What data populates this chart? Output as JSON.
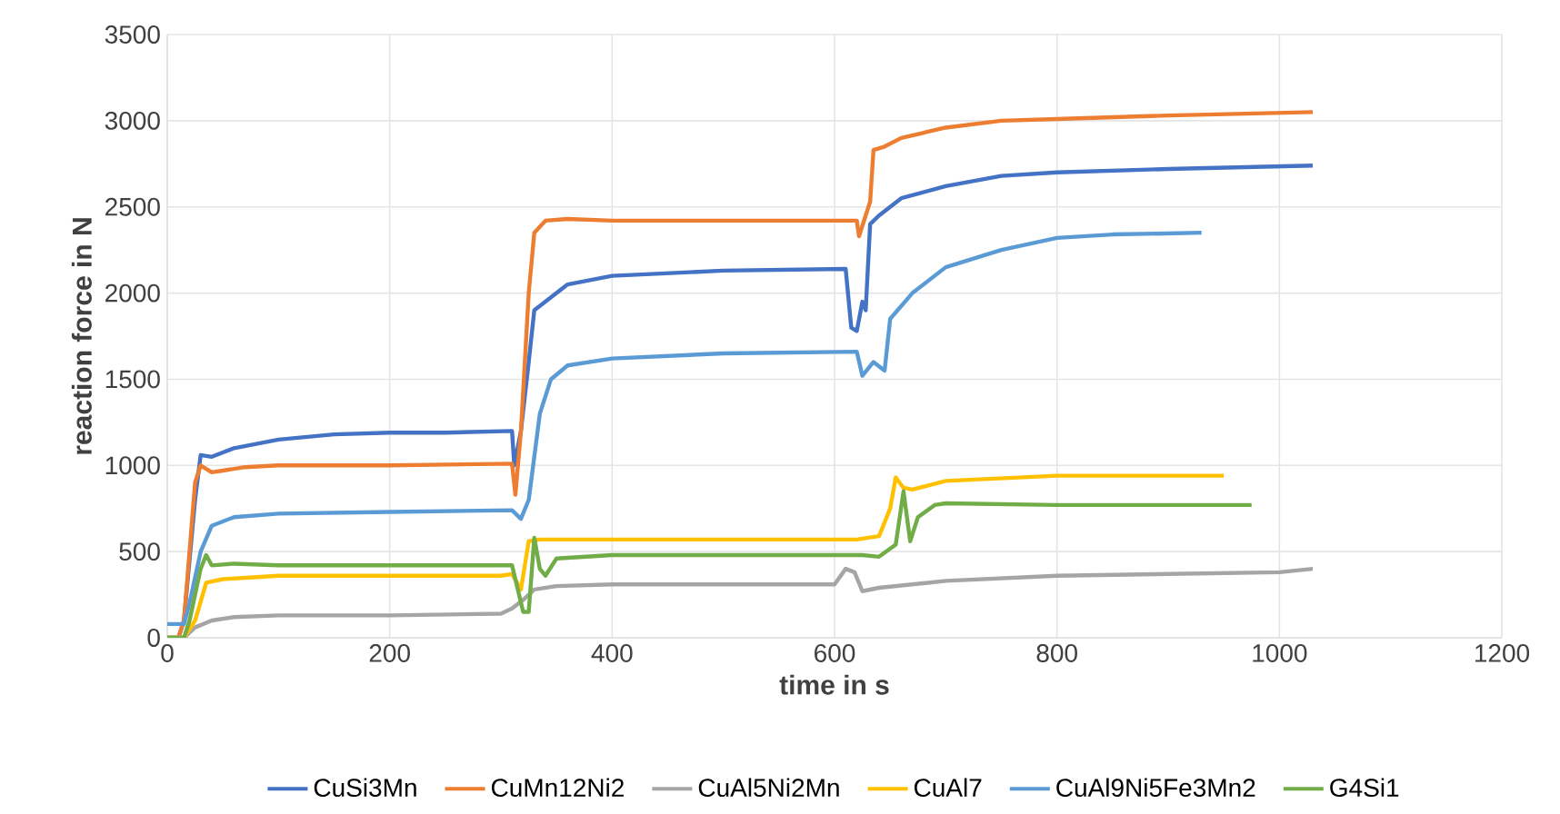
{
  "chart_data": {
    "type": "line",
    "xlabel": "time in s",
    "ylabel": "reaction force in N",
    "xlim": [
      0,
      1200
    ],
    "ylim": [
      0,
      3500
    ],
    "xticks": [
      0,
      200,
      400,
      600,
      800,
      1000,
      1200
    ],
    "yticks": [
      0,
      500,
      1000,
      1500,
      2000,
      2500,
      3000,
      3500
    ],
    "grid": true,
    "legend": "bottom",
    "marker": "none",
    "line_style": "solid",
    "series": [
      {
        "name": "CuSi3Mn",
        "color": "#4472c4",
        "x": [
          0,
          10,
          15,
          25,
          30,
          40,
          60,
          100,
          150,
          200,
          250,
          310,
          312,
          318,
          325,
          330,
          340,
          360,
          400,
          500,
          610,
          615,
          620,
          625,
          628,
          632,
          640,
          660,
          700,
          750,
          800,
          900,
          1030
        ],
        "values": [
          0,
          0,
          100,
          800,
          1060,
          1050,
          1100,
          1150,
          1180,
          1190,
          1190,
          1200,
          1000,
          1200,
          1600,
          1900,
          1950,
          2050,
          2100,
          2130,
          2140,
          1800,
          1780,
          1950,
          1900,
          2400,
          2450,
          2550,
          2620,
          2680,
          2700,
          2720,
          2740
        ]
      },
      {
        "name": "CuMn12Ni2",
        "color": "#ed7d31",
        "x": [
          0,
          10,
          15,
          25,
          30,
          40,
          50,
          70,
          100,
          200,
          310,
          313,
          318,
          325,
          330,
          340,
          360,
          400,
          500,
          620,
          622,
          627,
          632,
          635,
          645,
          660,
          700,
          750,
          800,
          900,
          1030
        ],
        "values": [
          0,
          0,
          100,
          900,
          1000,
          960,
          970,
          990,
          1000,
          1000,
          1010,
          830,
          1200,
          2000,
          2350,
          2420,
          2430,
          2420,
          2420,
          2420,
          2330,
          2430,
          2530,
          2830,
          2850,
          2900,
          2960,
          3000,
          3010,
          3030,
          3050
        ]
      },
      {
        "name": "CuAl5Ni2Mn",
        "color": "#a5a5a5",
        "x": [
          0,
          15,
          25,
          40,
          60,
          100,
          200,
          300,
          310,
          320,
          330,
          350,
          400,
          500,
          600,
          610,
          618,
          625,
          640,
          700,
          800,
          900,
          1000,
          1030
        ],
        "values": [
          0,
          0,
          60,
          100,
          120,
          130,
          130,
          140,
          170,
          220,
          280,
          300,
          310,
          310,
          310,
          400,
          380,
          270,
          290,
          330,
          360,
          370,
          380,
          400
        ]
      },
      {
        "name": "CuAl7",
        "color": "#ffc000",
        "x": [
          0,
          15,
          25,
          35,
          50,
          100,
          200,
          300,
          310,
          318,
          325,
          335,
          400,
          500,
          620,
          640,
          650,
          655,
          662,
          670,
          700,
          800,
          950
        ],
        "values": [
          0,
          0,
          100,
          320,
          340,
          360,
          360,
          360,
          370,
          280,
          560,
          570,
          570,
          570,
          570,
          590,
          750,
          930,
          870,
          860,
          910,
          940,
          940
        ]
      },
      {
        "name": "CuAl9Ni5Fe3Mn2",
        "color": "#5b9bd5",
        "x": [
          0,
          15,
          20,
          30,
          40,
          60,
          100,
          200,
          310,
          318,
          325,
          335,
          345,
          360,
          400,
          500,
          620,
          625,
          635,
          645,
          650,
          670,
          700,
          750,
          800,
          850,
          930
        ],
        "values": [
          80,
          80,
          200,
          500,
          650,
          700,
          720,
          730,
          740,
          690,
          800,
          1300,
          1500,
          1580,
          1620,
          1650,
          1660,
          1520,
          1600,
          1550,
          1850,
          2000,
          2150,
          2250,
          2320,
          2340,
          2350
        ]
      },
      {
        "name": "G4Si1",
        "color": "#70ad47",
        "x": [
          0,
          15,
          20,
          30,
          35,
          40,
          60,
          100,
          200,
          310,
          320,
          325,
          330,
          335,
          340,
          350,
          400,
          500,
          625,
          640,
          655,
          662,
          668,
          675,
          690,
          700,
          800,
          975
        ],
        "values": [
          0,
          0,
          100,
          400,
          480,
          420,
          430,
          420,
          420,
          420,
          150,
          150,
          580,
          400,
          360,
          460,
          480,
          480,
          480,
          470,
          540,
          850,
          560,
          700,
          770,
          780,
          770,
          770
        ]
      }
    ]
  }
}
